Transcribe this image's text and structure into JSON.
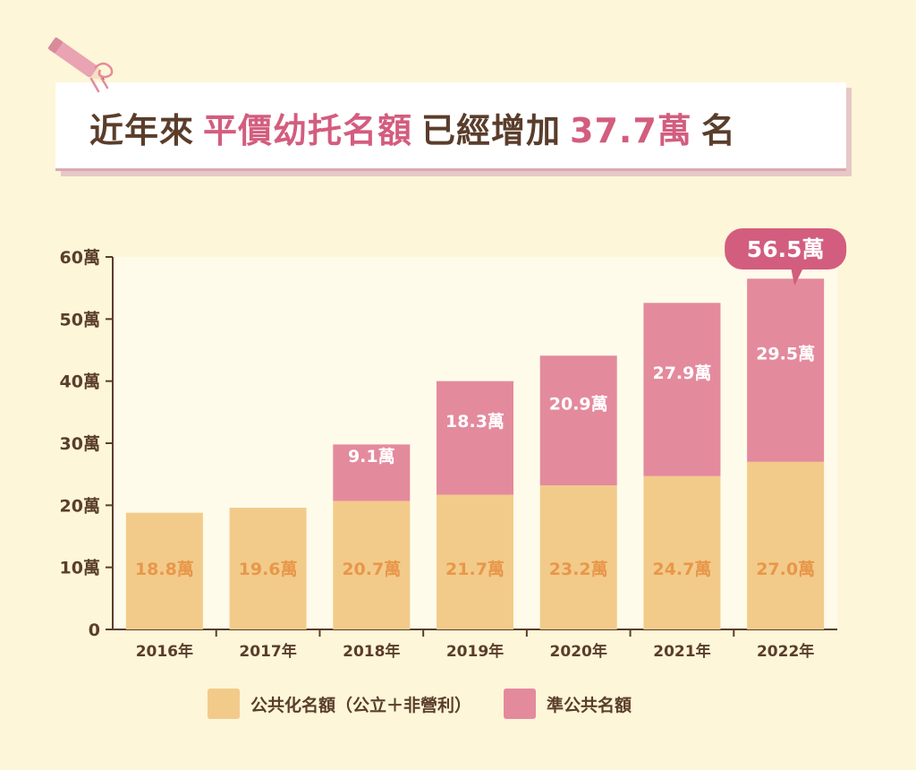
{
  "title": {
    "parts": [
      {
        "text": "近年來",
        "highlight": false
      },
      {
        "text": "平價幼托名額",
        "highlight": true
      },
      {
        "text": "已經增加",
        "highlight": false
      },
      {
        "text": "37.7萬",
        "highlight": true
      },
      {
        "text": "名",
        "highlight": false
      }
    ]
  },
  "colors": {
    "background": "#fdf6d8",
    "public": "#f2cb8a",
    "quasi": "#e48a9d",
    "public_label": "#e8974a",
    "quasi_label": "#ffffff",
    "accent": "#d35d7e",
    "text": "#5a3d2b"
  },
  "chart_data": {
    "type": "bar",
    "stacked": true,
    "categories": [
      "2016年",
      "2017年",
      "2018年",
      "2019年",
      "2020年",
      "2021年",
      "2022年"
    ],
    "series": [
      {
        "name": "公共化名額（公立＋非營利）",
        "values": [
          18.8,
          19.6,
          20.7,
          21.7,
          23.2,
          24.7,
          27.0
        ],
        "labels": [
          "18.8萬",
          "19.6萬",
          "20.7萬",
          "21.7萬",
          "23.2萬",
          "24.7萬",
          "27.0萬"
        ]
      },
      {
        "name": "準公共名額",
        "values": [
          null,
          null,
          9.1,
          18.3,
          20.9,
          27.9,
          29.5
        ],
        "labels": [
          null,
          null,
          "9.1萬",
          "18.3萬",
          "20.9萬",
          "27.9萬",
          "29.5萬"
        ]
      }
    ],
    "total_callout": {
      "category": "2022年",
      "text": "56.5萬"
    },
    "ylim": [
      0,
      60
    ],
    "yticks": [
      0,
      10,
      20,
      30,
      40,
      50,
      60
    ],
    "ytick_labels": [
      "0",
      "10萬",
      "20萬",
      "30萬",
      "40萬",
      "50萬",
      "60萬"
    ],
    "legend": "bottom"
  }
}
